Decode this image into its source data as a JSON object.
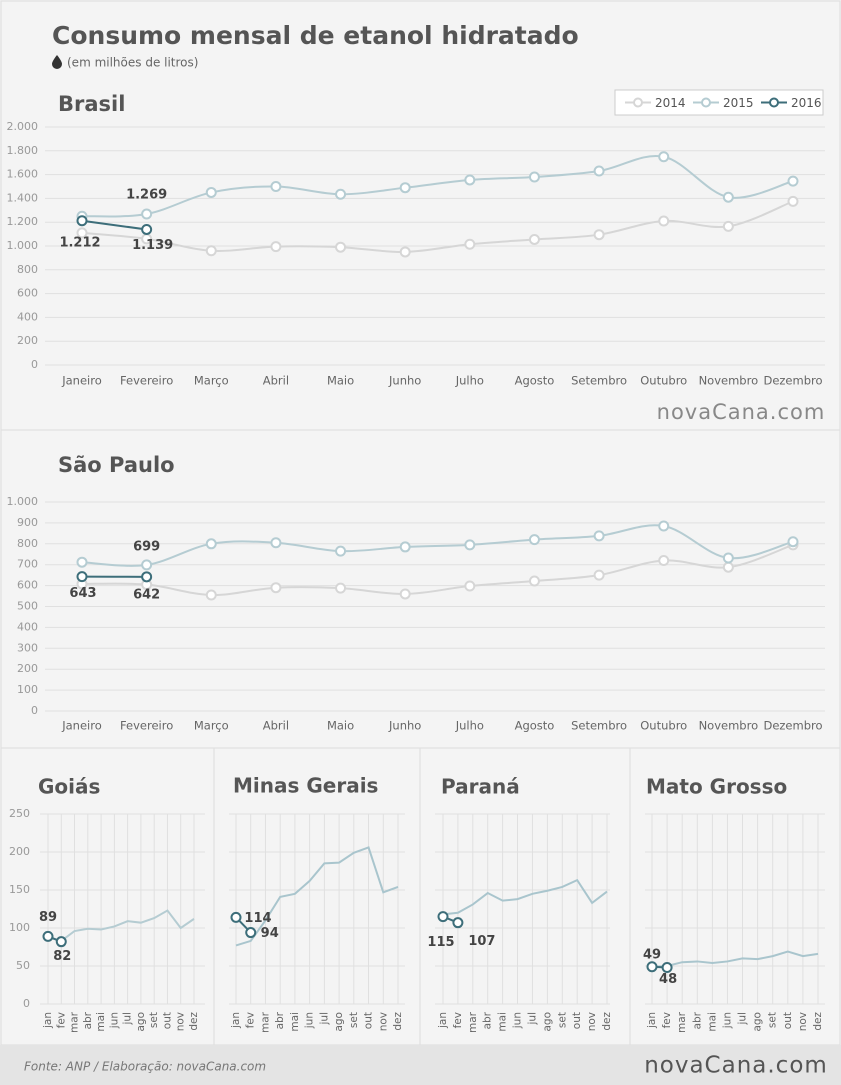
{
  "title": "Consumo mensal de etanol hidratado",
  "subtitle": "(em milhões de litros)",
  "source": "Fonte: ANP / Elaboração: novaCana.com",
  "logo": "novaCana.com",
  "chart_data": [
    {
      "type": "line",
      "title": "Brasil",
      "legend": "upper right",
      "grid": true,
      "categories": [
        "Janeiro",
        "Fevereiro",
        "Março",
        "Abril",
        "Maio",
        "Junho",
        "Julho",
        "Agosto",
        "Setembro",
        "Outubro",
        "Novembro",
        "Dezembro"
      ],
      "ylim": [
        0,
        2000
      ],
      "yticks": [
        0,
        200,
        400,
        600,
        800,
        {
          "value": 1000,
          "label": "1.000"
        },
        {
          "value": 1200,
          "label": "1.200"
        },
        {
          "value": 1400,
          "label": "1.400"
        },
        {
          "value": 1600,
          "label": "1.600"
        },
        {
          "value": 1800,
          "label": "1.800"
        },
        {
          "value": 2000,
          "label": "2.000"
        }
      ],
      "series": [
        {
          "name": "2014",
          "color": "#d6d6d6",
          "values": [
            1110,
            1060,
            960,
            995,
            990,
            950,
            1015,
            1055,
            1095,
            1210,
            1165,
            1375
          ]
        },
        {
          "name": "2015",
          "color": "#b5ccd2",
          "values": [
            1250,
            1269,
            1450,
            1500,
            1435,
            1490,
            1555,
            1580,
            1630,
            1750,
            1410,
            1545
          ],
          "value_labels": [
            null,
            "1.269",
            null,
            null,
            null,
            null,
            null,
            null,
            null,
            null,
            null,
            null
          ]
        },
        {
          "name": "2016",
          "color": "#3d6e7a",
          "values": [
            1212,
            1139,
            null,
            null,
            null,
            null,
            null,
            null,
            null,
            null,
            null,
            null
          ],
          "value_labels": [
            "1.212",
            "1.139",
            null,
            null,
            null,
            null,
            null,
            null,
            null,
            null,
            null,
            null
          ]
        }
      ]
    },
    {
      "type": "line",
      "title": "São Paulo",
      "grid": true,
      "categories": [
        "Janeiro",
        "Fevereiro",
        "Março",
        "Abril",
        "Maio",
        "Junho",
        "Julho",
        "Agosto",
        "Setembro",
        "Outubro",
        "Novembro",
        "Dezembro"
      ],
      "ylim": [
        0,
        1000
      ],
      "yticks": [
        0,
        100,
        200,
        300,
        400,
        500,
        600,
        700,
        800,
        900,
        {
          "value": 1000,
          "label": "1.000"
        }
      ],
      "series": [
        {
          "color": "#d6d6d6",
          "values": [
            608,
            605,
            555,
            590,
            588,
            560,
            598,
            622,
            650,
            720,
            688,
            795
          ]
        },
        {
          "color": "#b5ccd2",
          "values": [
            712,
            699,
            800,
            805,
            765,
            785,
            795,
            820,
            838,
            885,
            732,
            810
          ],
          "labeled": [
            1
          ]
        },
        {
          "color": "#3d6e7a",
          "values": [
            643,
            642,
            null,
            null,
            null,
            null,
            null,
            null,
            null,
            null,
            null,
            null
          ],
          "labeled": [
            0,
            1
          ]
        }
      ]
    },
    {
      "type": "line",
      "title": "Goiás",
      "grid": true,
      "categories": [
        "jan",
        "fev",
        "mar",
        "abr",
        "mai",
        "jun",
        "jul",
        "ago",
        "set",
        "out",
        "nov",
        "dez"
      ],
      "ylim": [
        0,
        250
      ],
      "yticks": [
        0,
        50,
        100,
        150,
        200,
        250
      ],
      "series": [
        {
          "color": "#b5ccd2",
          "values": [
            88,
            83,
            96,
            99,
            98,
            102,
            109,
            107,
            113,
            123,
            100,
            112
          ]
        },
        {
          "color": "#3d6e7a",
          "values": [
            89,
            82,
            null,
            null,
            null,
            null,
            null,
            null,
            null,
            null,
            null,
            null
          ],
          "labeled": [
            0,
            1
          ]
        }
      ]
    },
    {
      "type": "line",
      "title": "Minas Gerais",
      "grid": true,
      "categories": [
        "jan",
        "fev",
        "mar",
        "abr",
        "mai",
        "jun",
        "jul",
        "ago",
        "set",
        "out",
        "nov",
        "dez"
      ],
      "ylim": [
        0,
        250
      ],
      "yticks": [
        0,
        50,
        100,
        150,
        200,
        250
      ],
      "series": [
        {
          "color": "#a9c5cd",
          "values": [
            77,
            83,
            110,
            141,
            145,
            162,
            185,
            186,
            199,
            206,
            147,
            154
          ]
        },
        {
          "color": "#3d6e7a",
          "values": [
            114,
            94,
            null,
            null,
            null,
            null,
            null,
            null,
            null,
            null,
            null,
            null
          ],
          "labeled": [
            0,
            1
          ]
        }
      ]
    },
    {
      "type": "line",
      "title": "Paraná",
      "grid": true,
      "categories": [
        "jan",
        "fev",
        "mar",
        "abr",
        "mai",
        "jun",
        "jul",
        "ago",
        "set",
        "out",
        "nov",
        "dez"
      ],
      "ylim": [
        0,
        250
      ],
      "yticks": [
        0,
        50,
        100,
        150,
        200,
        250
      ],
      "series": [
        {
          "color": "#a9c5cd",
          "values": [
            118,
            120,
            131,
            146,
            136,
            138,
            145,
            149,
            154,
            163,
            133,
            148
          ]
        },
        {
          "color": "#3d6e7a",
          "values": [
            115,
            107,
            null,
            null,
            null,
            null,
            null,
            null,
            null,
            null,
            null,
            null
          ],
          "labeled": [
            0,
            1
          ]
        }
      ]
    },
    {
      "type": "line",
      "title": "Mato Grosso",
      "grid": true,
      "categories": [
        "jan",
        "fev",
        "mar",
        "abr",
        "mai",
        "jun",
        "jul",
        "ago",
        "set",
        "out",
        "nov",
        "dez"
      ],
      "ylim": [
        0,
        250
      ],
      "yticks": [
        0,
        50,
        100,
        150,
        200,
        250
      ],
      "series": [
        {
          "color": "#a9c5cd",
          "values": [
            49,
            50,
            55,
            56,
            54,
            56,
            60,
            59,
            63,
            69,
            63,
            66
          ]
        },
        {
          "color": "#3d6e7a",
          "values": [
            49,
            48,
            null,
            null,
            null,
            null,
            null,
            null,
            null,
            null,
            null,
            null
          ],
          "labeled": [
            0,
            1
          ]
        }
      ]
    }
  ]
}
